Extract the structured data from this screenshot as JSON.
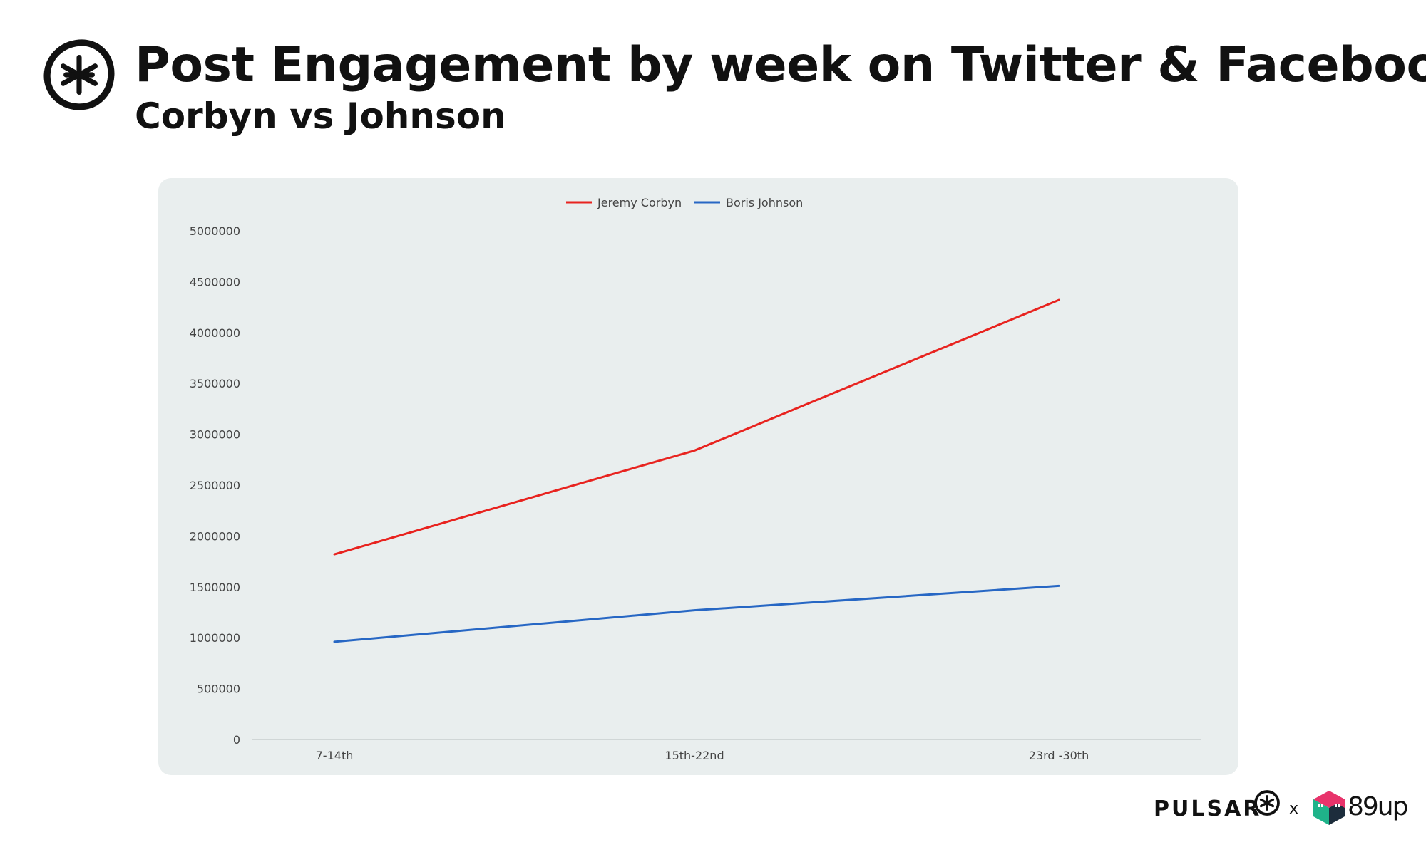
{
  "header": {
    "title": "Post Engagement by week on Twitter & Facebook",
    "subtitle": "Corbyn vs Johnson"
  },
  "chart_data": {
    "type": "line",
    "title": "Post Engagement by week on Twitter & Facebook",
    "subtitle": "Corbyn vs Johnson",
    "categories": [
      "7-14th",
      "15th-22nd",
      "23rd -30th"
    ],
    "series": [
      {
        "name": "Jeremy Corbyn",
        "color": "#e8231f",
        "values": [
          1820000,
          2840000,
          4320000
        ]
      },
      {
        "name": "Boris Johnson",
        "color": "#2767c4",
        "values": [
          960000,
          1270000,
          1510000
        ]
      }
    ],
    "y_ticks": [
      "0",
      "500000",
      "1000000",
      "1500000",
      "2000000",
      "2500000",
      "3000000",
      "3500000",
      "4000000",
      "4500000",
      "5000000"
    ],
    "ylim": [
      0,
      5000000
    ],
    "xlabel": "",
    "ylabel": "",
    "legend_position": "top-center",
    "grid": false
  },
  "footer": {
    "brand_pulsar": "PULSAR",
    "separator": "x",
    "brand_89up": "89up"
  },
  "colors": {
    "panel_background": "#e9eeee",
    "axis": "#d0d6d6",
    "cube_green": "#1fb38a",
    "cube_pink": "#e8336b",
    "cube_dark": "#1d2d3c"
  }
}
